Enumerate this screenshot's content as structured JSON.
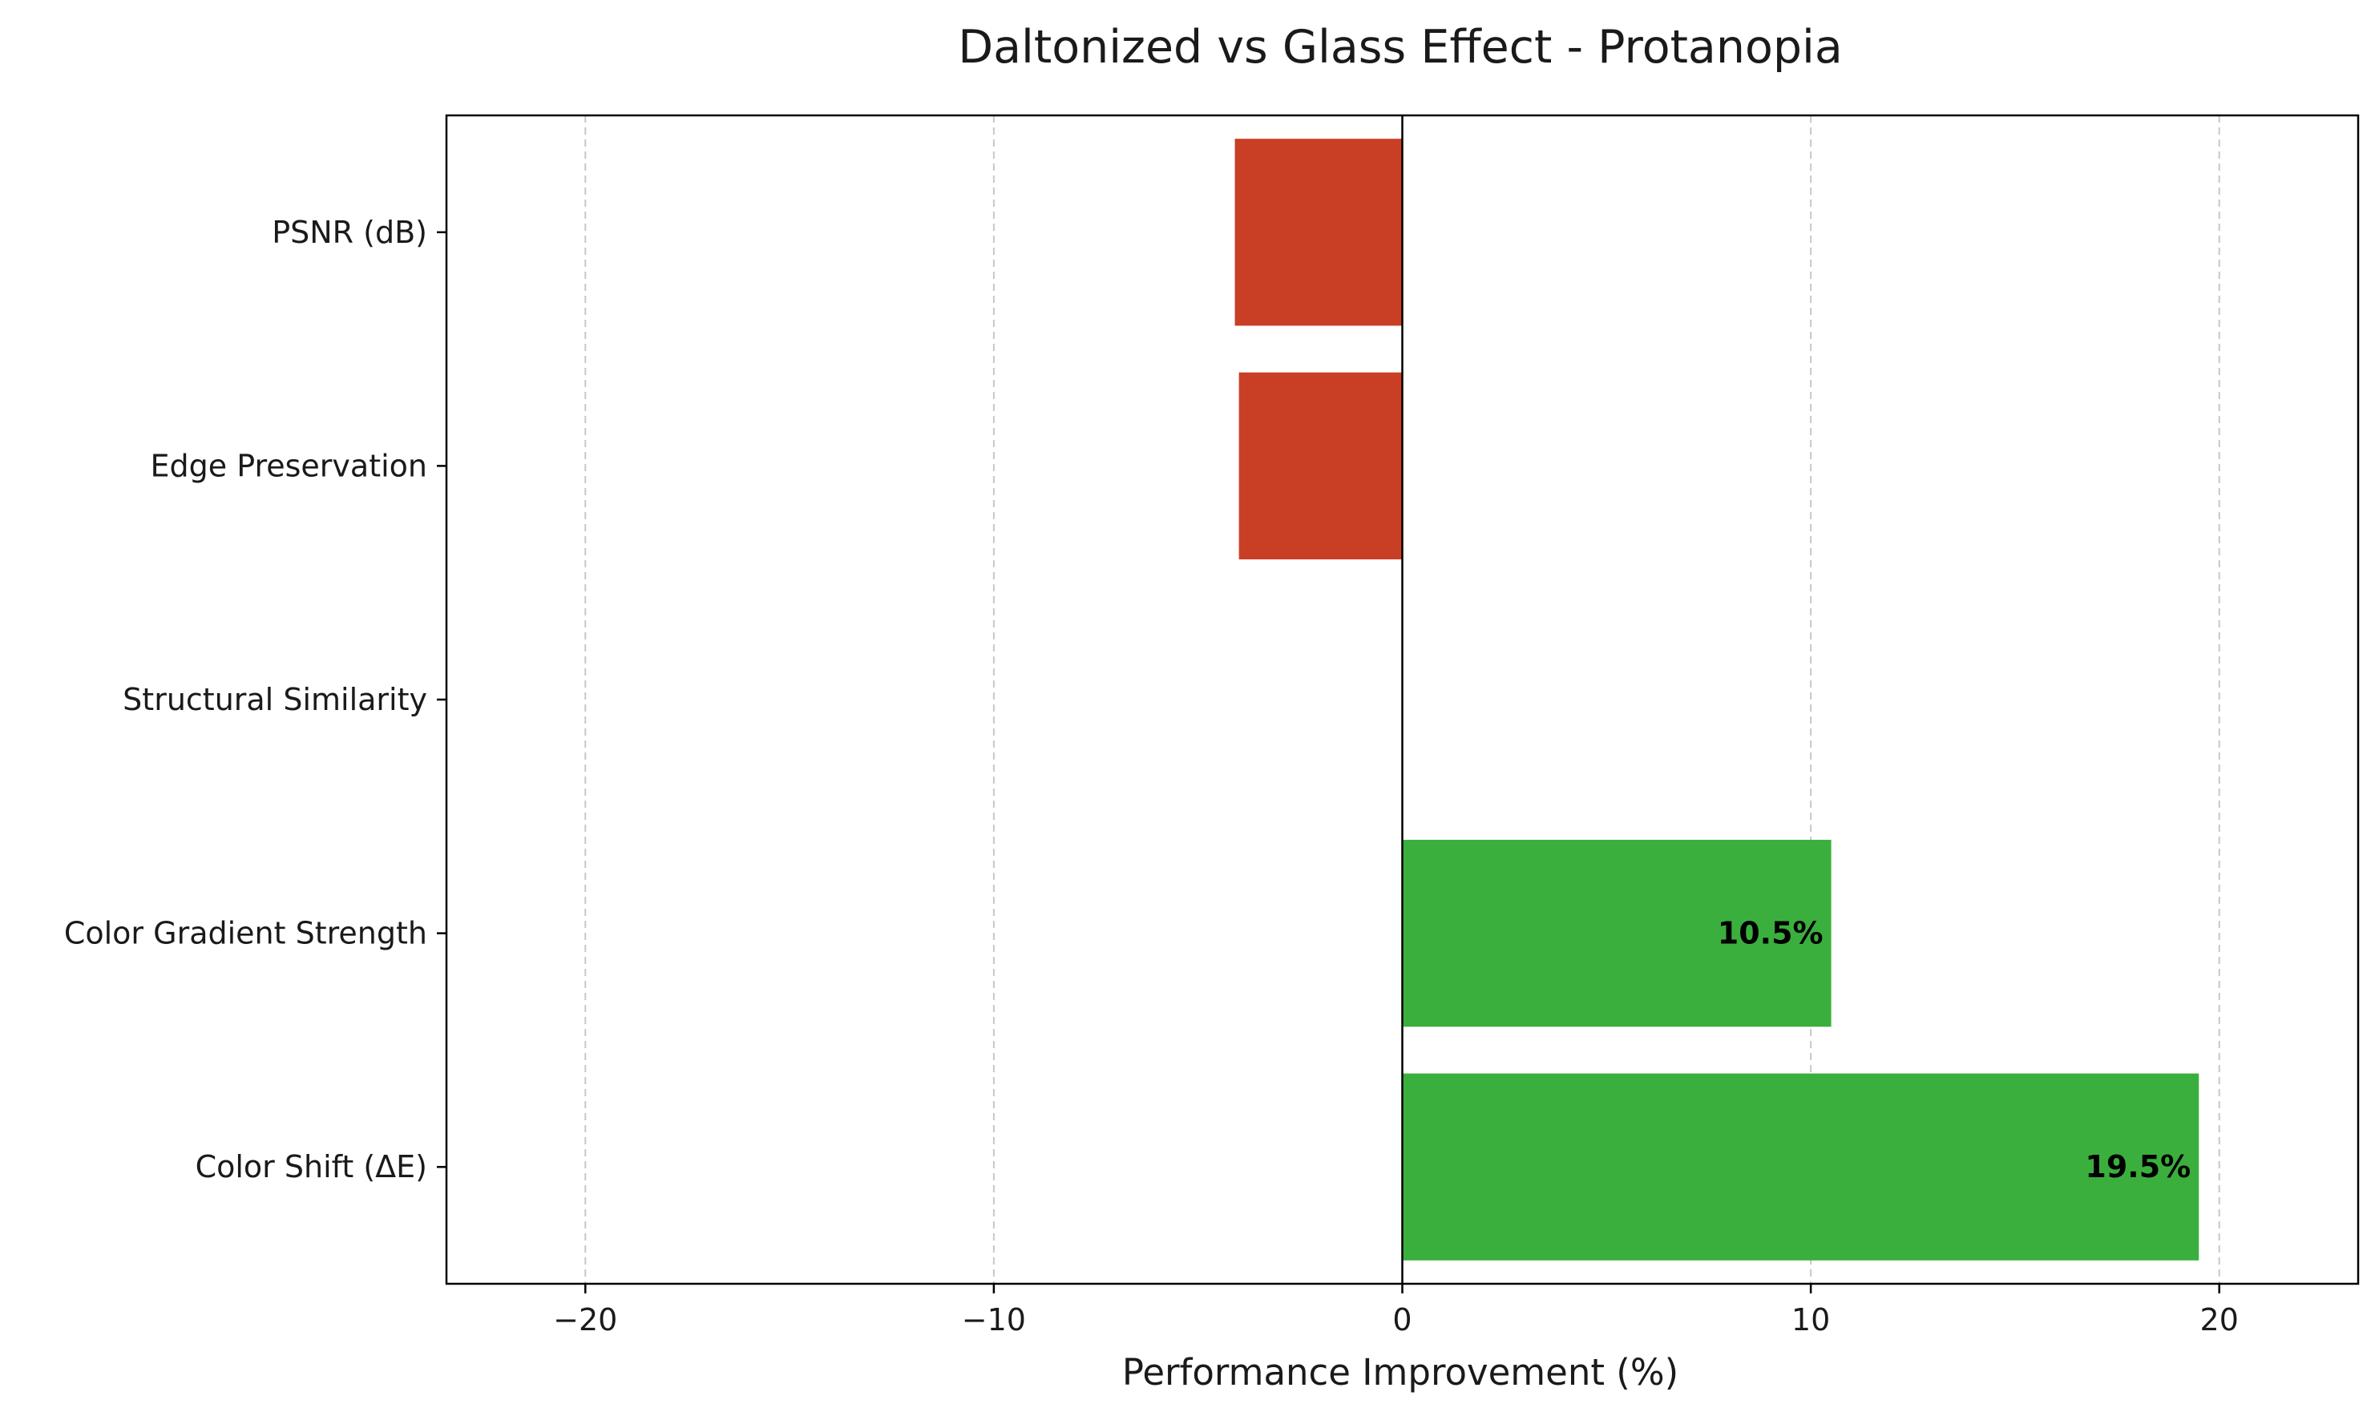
{
  "chart_data": {
    "type": "bar",
    "orientation": "horizontal",
    "title": "Daltonized vs Glass Effect - Protanopia",
    "xlabel": "Performance Improvement (%)",
    "ylabel": "",
    "categories": [
      "Color Shift (ΔE)",
      "Color Gradient Strength",
      "Structural Similarity",
      "Edge Preservation",
      "PSNR (dB)"
    ],
    "values": [
      19.5,
      10.5,
      0.0,
      -4.0,
      -4.1
    ],
    "data_labels": [
      "19.5%",
      "10.5%",
      "",
      "",
      ""
    ],
    "xlim": [
      -23.4,
      23.4
    ],
    "xticks": [
      -20,
      -10,
      0,
      10,
      20
    ],
    "xtick_labels": [
      "−20",
      "−10",
      "0",
      "10",
      "20"
    ],
    "grid": "x-dashed",
    "legend": "none",
    "colors": {
      "positive": "#3baf3e",
      "negative": "#c93f26",
      "grid": "#c8c8c8",
      "axis": "#000000"
    }
  }
}
